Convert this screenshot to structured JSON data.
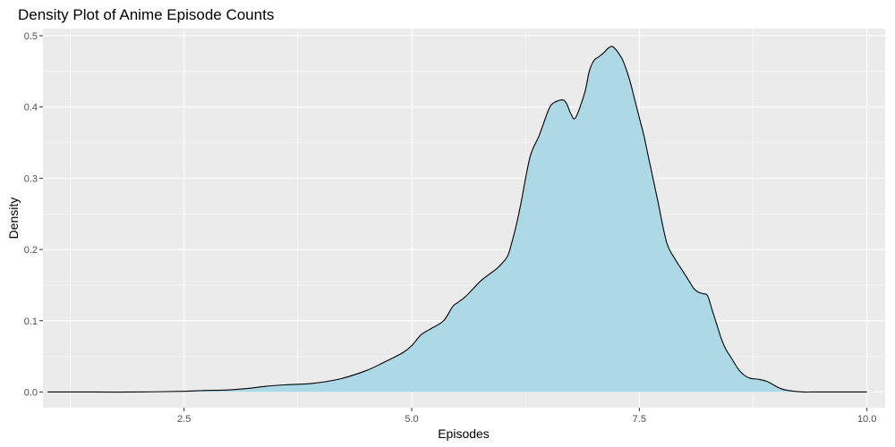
{
  "chart_data": {
    "type": "area",
    "title": "Density Plot of Anime Episode Counts",
    "xlabel": "Episodes",
    "ylabel": "Density",
    "xlim": [
      0.95,
      10.2
    ],
    "ylim": [
      -0.022,
      0.51
    ],
    "x_ticks": [
      {
        "value": 2.5,
        "label": "2.5"
      },
      {
        "value": 5.0,
        "label": "5.0"
      },
      {
        "value": 7.5,
        "label": "7.5"
      },
      {
        "value": 10.0,
        "label": "10.0"
      }
    ],
    "y_ticks": [
      {
        "value": 0.0,
        "label": "0.0"
      },
      {
        "value": 0.1,
        "label": "0.1"
      },
      {
        "value": 0.2,
        "label": "0.2"
      },
      {
        "value": 0.3,
        "label": "0.3"
      },
      {
        "value": 0.4,
        "label": "0.4"
      },
      {
        "value": 0.5,
        "label": "0.5"
      }
    ],
    "grid": true,
    "colors": {
      "panel_background": "#ebebeb",
      "fill": "#add8e6",
      "line": "#000000",
      "grid": "#ffffff"
    },
    "series": [
      {
        "x": [
          1.0,
          1.5,
          2.0,
          2.5,
          2.7,
          3.0,
          3.2,
          3.4,
          3.6,
          3.9,
          4.2,
          4.5,
          4.7,
          4.9,
          5.0,
          5.1,
          5.2,
          5.35,
          5.45,
          5.5,
          5.6,
          5.75,
          5.85,
          5.95,
          6.05,
          6.1,
          6.15,
          6.2,
          6.3,
          6.4,
          6.5,
          6.55,
          6.65,
          6.7,
          6.75,
          6.8,
          6.9,
          6.95,
          7.0,
          7.05,
          7.1,
          7.2,
          7.3,
          7.35,
          7.4,
          7.45,
          7.5,
          7.55,
          7.6,
          7.7,
          7.8,
          7.9,
          7.95,
          8.0,
          8.05,
          8.1,
          8.15,
          8.2,
          8.25,
          8.3,
          8.35,
          8.4,
          8.45,
          8.5,
          8.6,
          8.7,
          8.8,
          8.9,
          9.0,
          9.05,
          9.1,
          9.2,
          9.3,
          9.4,
          9.6,
          10.0
        ],
        "y": [
          0.0,
          0.0,
          0.0,
          0.001,
          0.002,
          0.003,
          0.005,
          0.008,
          0.01,
          0.012,
          0.018,
          0.03,
          0.042,
          0.055,
          0.065,
          0.08,
          0.088,
          0.1,
          0.12,
          0.125,
          0.135,
          0.155,
          0.165,
          0.175,
          0.19,
          0.21,
          0.235,
          0.265,
          0.33,
          0.36,
          0.395,
          0.405,
          0.41,
          0.405,
          0.39,
          0.385,
          0.42,
          0.45,
          0.465,
          0.47,
          0.475,
          0.485,
          0.47,
          0.455,
          0.435,
          0.41,
          0.385,
          0.36,
          0.33,
          0.27,
          0.21,
          0.185,
          0.175,
          0.165,
          0.155,
          0.145,
          0.14,
          0.138,
          0.135,
          0.115,
          0.095,
          0.075,
          0.06,
          0.05,
          0.03,
          0.02,
          0.018,
          0.015,
          0.008,
          0.005,
          0.003,
          0.001,
          0.0,
          0.0,
          0.0,
          0.0
        ]
      }
    ]
  }
}
